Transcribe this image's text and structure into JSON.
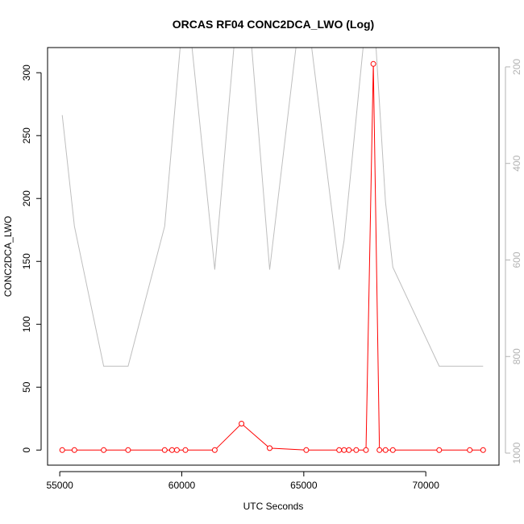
{
  "chart_data": {
    "type": "line",
    "title": "ORCAS RF04 CONC2DCA_LWO (Log)",
    "xlabel": "UTC Seconds",
    "ylabel": "CONC2DCA_LWO",
    "xlim": [
      54500,
      73000
    ],
    "ylim": [
      -12,
      320
    ],
    "x_ticks": [
      55000,
      60000,
      65000,
      70000
    ],
    "y_ticks": [
      0,
      50,
      100,
      150,
      200,
      250,
      300
    ],
    "y2_ticks": [
      200,
      400,
      600,
      800,
      1000
    ],
    "y2lim": [
      1025,
      160
    ],
    "colors": {
      "primary": "#ff0000",
      "secondary": "#bebebe"
    },
    "series": [
      {
        "axis": "left",
        "style": "line+points",
        "color": "#ff0000",
        "points": [
          [
            55100,
            0
          ],
          [
            55600,
            0
          ],
          [
            56800,
            0
          ],
          [
            57800,
            0
          ],
          [
            59300,
            0
          ],
          [
            59600,
            0
          ],
          [
            59800,
            0
          ],
          [
            60150,
            0
          ],
          [
            61350,
            0
          ],
          [
            62450,
            21
          ],
          [
            63600,
            1.5
          ],
          [
            65100,
            0
          ],
          [
            66450,
            0
          ],
          [
            66650,
            0
          ],
          [
            66850,
            0
          ],
          [
            67150,
            0
          ],
          [
            67550,
            0
          ],
          [
            67850,
            307
          ],
          [
            68100,
            0
          ],
          [
            68350,
            0
          ],
          [
            68650,
            0
          ],
          [
            70550,
            0
          ],
          [
            71800,
            0
          ],
          [
            72350,
            0
          ]
        ]
      },
      {
        "axis": "right",
        "style": "line",
        "color": "#bebebe",
        "points": [
          [
            55100,
            300
          ],
          [
            55600,
            530
          ],
          [
            56800,
            820
          ],
          [
            57800,
            820
          ],
          [
            59300,
            530
          ],
          [
            59950,
            150
          ],
          [
            60400,
            150
          ],
          [
            61350,
            620
          ],
          [
            62150,
            150
          ],
          [
            62850,
            150
          ],
          [
            63600,
            620
          ],
          [
            64700,
            150
          ],
          [
            65300,
            150
          ],
          [
            66450,
            620
          ],
          [
            66650,
            560
          ],
          [
            67450,
            150
          ],
          [
            67950,
            150
          ],
          [
            68350,
            480
          ],
          [
            68650,
            615
          ],
          [
            70550,
            820
          ],
          [
            72350,
            820
          ]
        ]
      }
    ]
  }
}
